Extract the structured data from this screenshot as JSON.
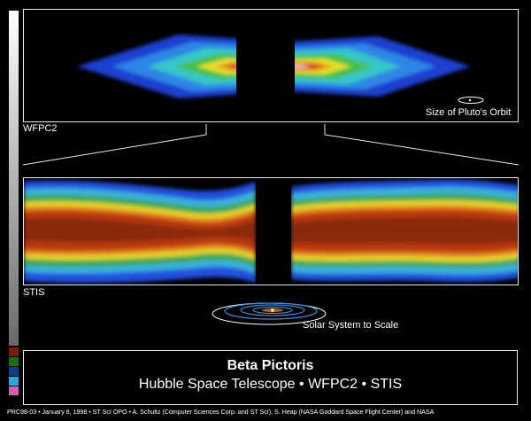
{
  "panels": {
    "wfpc2": {
      "label": "WFPC2",
      "orbit_label": "Size of Pluto's Orbit"
    },
    "stis": {
      "label": "STIS",
      "solar_label": "Solar System to Scale"
    }
  },
  "caption": {
    "title": "Beta Pictoris",
    "subtitle": "Hubble Space Telescope • WFPC2 • STIS"
  },
  "credit": "PRC98-03 • January 8, 1998 • ST ScI OPO • A. Schultz (Computer Sciences Corp. and ST ScI), S. Heap (NASA Goddard Space Flight Center) and NASA",
  "colors": {
    "swatches": [
      "#7a1d08",
      "#1a6e10",
      "#123c8c",
      "#2aa8d8",
      "#d060b0"
    ]
  }
}
